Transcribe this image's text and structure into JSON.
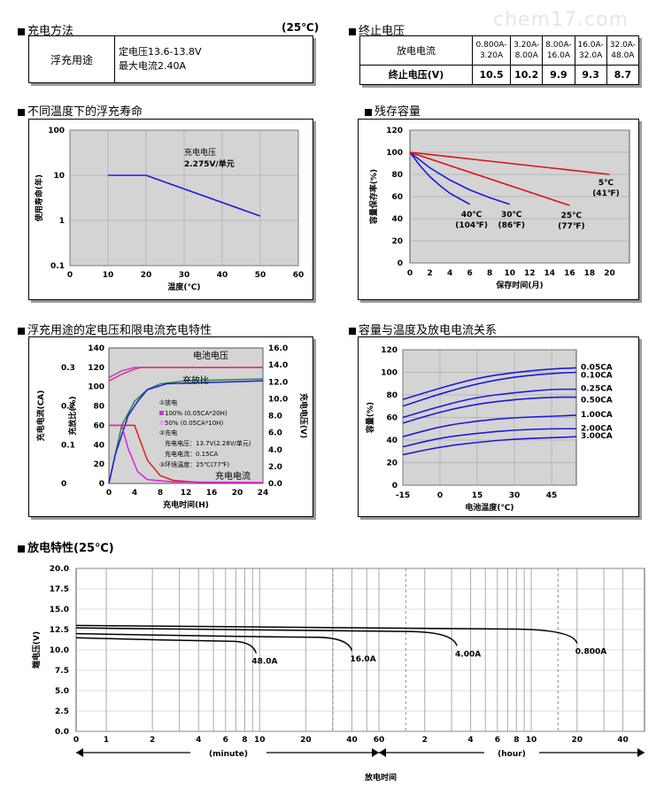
{
  "watermark": "chem17.com",
  "charge_method": {
    "title": "充电方法",
    "temp": "(25℃)",
    "row_label": "浮充用途",
    "line1": "定电压13.6-13.8V",
    "line2": "最大电流2.40A"
  },
  "cutoff": {
    "title": "终止电压",
    "header_label": "放电电流",
    "value_label": "终止电压(V)",
    "currents": [
      [
        "0.800A-",
        "3.20A"
      ],
      [
        "3.20A-",
        "8.00A"
      ],
      [
        "8.00A-",
        "16.0A"
      ],
      [
        "16.0A-",
        "32.0A"
      ],
      [
        "32.0A-",
        "48.0A"
      ]
    ],
    "voltages": [
      "10.5",
      "10.2",
      "9.9",
      "9.3",
      "8.7"
    ]
  },
  "float_life": {
    "title": "不同温度下的浮充寿命",
    "chart_data": {
      "type": "line",
      "scale": "log-y",
      "xlabel": "温度(℃)",
      "ylabel": "使用寿命(年)",
      "xlim": [
        0,
        60
      ],
      "ylim": [
        0.1,
        100
      ],
      "xticks": [
        "0",
        "10",
        "20",
        "30",
        "40",
        "50",
        "60"
      ],
      "yticks": [
        "0.1",
        "1",
        "10",
        "100"
      ],
      "annotation": [
        "充电电压",
        "2.275V/单元"
      ],
      "series": [
        {
          "x": [
            10,
            20,
            50
          ],
          "y": [
            10,
            10,
            1.25
          ]
        }
      ]
    }
  },
  "residual": {
    "title": "残存容量",
    "chart_data": {
      "type": "line",
      "xlabel": "保存时间(月)",
      "ylabel": "容量保存率(%)",
      "xlim": [
        0,
        22
      ],
      "ylim": [
        0,
        120
      ],
      "xticks": [
        "0",
        "2",
        "4",
        "6",
        "8",
        "10",
        "12",
        "14",
        "16",
        "18",
        "20"
      ],
      "yticks": [
        "0",
        "20",
        "40",
        "60",
        "80",
        "100",
        "120"
      ],
      "series": [
        {
          "name": "40℃ (104℉)",
          "color": "#1a1adf",
          "x": [
            0,
            1,
            2,
            3,
            4,
            5,
            6
          ],
          "y": [
            100,
            88,
            78,
            70,
            63,
            58,
            53
          ]
        },
        {
          "name": "30℃ (86℉)",
          "color": "#1a1adf",
          "x": [
            0,
            2,
            4,
            6,
            8,
            10
          ],
          "y": [
            100,
            86,
            75,
            66,
            59,
            53
          ]
        },
        {
          "name": "25℃ (77℉)",
          "color": "#e01010",
          "x": [
            0,
            4,
            8,
            12,
            16
          ],
          "y": [
            100,
            88,
            76,
            64,
            52
          ]
        },
        {
          "name": "5℃ (41℉)",
          "color": "#e01010",
          "x": [
            0,
            5,
            10,
            15,
            20
          ],
          "y": [
            100,
            95,
            90,
            85,
            80
          ]
        }
      ],
      "labels": [
        {
          "t1": "40℃",
          "t2": "(104℉)"
        },
        {
          "t1": "30℃",
          "t2": "(86℉)"
        },
        {
          "t1": "25℃",
          "t2": "(77℉)"
        },
        {
          "t1": "5℃",
          "t2": "(41℉)"
        }
      ]
    }
  },
  "float_charge": {
    "title": "浮充用途的定电压和限电流充电特性",
    "chart_data": {
      "type": "line",
      "xlabel": "充电时间(H)",
      "xticks": [
        "0",
        "4",
        "8",
        "12",
        "16",
        "20",
        "24"
      ],
      "xlim": [
        0,
        24
      ],
      "ylabel_left1": "充电电流(CA)",
      "ylabel_left2": "充放比(%)",
      "ylabel_right": "充电电压(V)",
      "yticks_ca": [
        "0",
        "0.1",
        "0.2",
        "0.3"
      ],
      "yticks_pct": [
        "0",
        "20",
        "40",
        "60",
        "80",
        "100",
        "120",
        "140"
      ],
      "yticks_v": [
        "0.0",
        "2.0",
        "4.0",
        "6.0",
        "8.0",
        "10.0",
        "12.0",
        "14.0",
        "16.0"
      ],
      "label_voltage": "电池电压",
      "label_ratio": "充放比",
      "label_current": "充电电流",
      "legend": [
        "①放电",
        "100% (0.05CA*20H)",
        "50% (0.05CA*10H)",
        "②充电",
        "充电电压：13.7V(2.28V/单元)",
        "充电电流：0.15CA",
        "③环境温度：25℃(77℉)"
      ],
      "series": [
        {
          "name": "电池电压 100%",
          "color": "#c040c0",
          "x": [
            0,
            2,
            4,
            24
          ],
          "y_v": [
            12.5,
            13.3,
            13.7,
            13.7
          ]
        },
        {
          "name": "电池电压 50%",
          "color": "#e03070",
          "x": [
            0,
            2,
            4,
            5,
            24
          ],
          "y_v": [
            12.1,
            12.9,
            13.5,
            13.7,
            13.7
          ]
        },
        {
          "name": "充放比",
          "color": "#2a8a4a",
          "x": [
            0,
            2,
            4,
            6,
            8,
            12,
            24
          ],
          "y_pct": [
            0,
            60,
            85,
            97,
            103,
            106,
            108
          ]
        },
        {
          "name": "充放比 50%",
          "color": "#1a1adf",
          "x": [
            0,
            1,
            3,
            4.5,
            6,
            9,
            24
          ],
          "y_pct": [
            0,
            30,
            70,
            85,
            97,
            103,
            106
          ]
        },
        {
          "name": "充电电流 100%",
          "color": "#e02020",
          "x": [
            0,
            4,
            6,
            8,
            10,
            14,
            24
          ],
          "y_ca": [
            0.15,
            0.15,
            0.06,
            0.02,
            0.008,
            0.003,
            0.002
          ]
        },
        {
          "name": "充电电流 50%",
          "color": "#e020e0",
          "x": [
            0,
            2,
            3,
            4.5,
            6,
            10,
            24
          ],
          "y_ca": [
            0.15,
            0.15,
            0.09,
            0.03,
            0.01,
            0.004,
            0.002
          ]
        }
      ]
    }
  },
  "capacity_temp": {
    "title": "容量与温度及放电电流关系",
    "chart_data": {
      "type": "line",
      "xlabel": "电池温度(℃)",
      "ylabel": "容量(%)",
      "xlim": [
        -15,
        55
      ],
      "ylim": [
        0,
        120
      ],
      "xticks": [
        "-15",
        "0",
        "15",
        "30",
        "45"
      ],
      "yticks": [
        "0",
        "20",
        "40",
        "60",
        "80",
        "100",
        "120"
      ],
      "series": [
        {
          "name": "0.05CA",
          "x": [
            -15,
            0,
            15,
            30,
            45,
            55
          ],
          "y": [
            76,
            86,
            95,
            100,
            103,
            104
          ]
        },
        {
          "name": "0.10CA",
          "x": [
            -15,
            0,
            15,
            30,
            45,
            55
          ],
          "y": [
            70,
            81,
            90,
            96,
            99,
            100
          ]
        },
        {
          "name": "0.25CA",
          "x": [
            -15,
            0,
            15,
            30,
            45,
            55
          ],
          "y": [
            60,
            70,
            78,
            82,
            85,
            85
          ]
        },
        {
          "name": "0.50CA",
          "x": [
            -15,
            0,
            15,
            30,
            45,
            55
          ],
          "y": [
            55,
            65,
            72,
            76,
            78,
            78
          ]
        },
        {
          "name": "1.00CA",
          "x": [
            -15,
            0,
            15,
            30,
            45,
            55
          ],
          "y": [
            43,
            52,
            57,
            60,
            61,
            62
          ]
        },
        {
          "name": "2.00CA",
          "x": [
            -15,
            0,
            15,
            30,
            45,
            55
          ],
          "y": [
            34,
            42,
            46,
            49,
            50,
            50
          ]
        },
        {
          "name": "3.00CA",
          "x": [
            -15,
            0,
            15,
            30,
            45,
            55
          ],
          "y": [
            27,
            34,
            38,
            41,
            42,
            43
          ]
        }
      ]
    }
  },
  "discharge": {
    "title": "放电特性(25℃)",
    "chart_data": {
      "type": "line",
      "xlabel": "放电时间",
      "ylabel": "端电压(V)",
      "ylim": [
        0,
        20
      ],
      "yticks": [
        "0.0",
        "2.5",
        "5.0",
        "7.5",
        "10.0",
        "12.5",
        "15.0",
        "17.5",
        "20.0"
      ],
      "xticks": [
        "0",
        "1",
        "2",
        "4",
        "6",
        "8",
        "10",
        "20",
        "40",
        "60",
        "2",
        "4",
        "6",
        "8",
        "10",
        "20",
        "40"
      ],
      "unit_minute": "(minute)",
      "unit_hour": "(hour)",
      "series": [
        {
          "name": "48.0A",
          "end_min": 9.5,
          "y0": 11.5,
          "yend": 9.6
        },
        {
          "name": "16.0A",
          "end_min": 40,
          "y0": 12.0,
          "yend": 9.9
        },
        {
          "name": "4.00A",
          "end_min": 195,
          "y0": 12.7,
          "yend": 10.5
        },
        {
          "name": "0.800A",
          "end_min": 1200,
          "y0": 13.0,
          "yend": 10.8
        }
      ]
    }
  }
}
